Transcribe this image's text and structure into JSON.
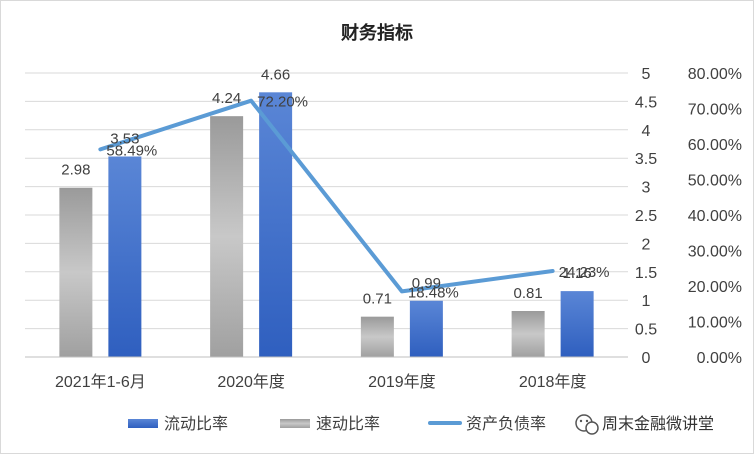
{
  "chart_data": {
    "type": "bar",
    "title": "财务指标",
    "categories": [
      "2021年1-6月",
      "2020年度",
      "2019年度",
      "2018年度"
    ],
    "series": [
      {
        "name": "速动比率",
        "kind": "bar",
        "axis": "left",
        "values": [
          2.98,
          4.24,
          0.71,
          0.81
        ],
        "labels": [
          "2.98",
          "4.24",
          "0.71",
          "0.81"
        ],
        "color": "#a6a6a6"
      },
      {
        "name": "流动比率",
        "kind": "bar",
        "axis": "left",
        "values": [
          3.53,
          4.66,
          0.99,
          1.16
        ],
        "labels": [
          "3.53",
          "4.66",
          "0.99",
          "1.16"
        ],
        "color": "#4472c4"
      },
      {
        "name": "资产负债率",
        "kind": "line",
        "axis": "right",
        "values": [
          58.49,
          72.2,
          18.48,
          24.23
        ],
        "labels": [
          "58.49%",
          "72.20%",
          "18.48%",
          "24.23%"
        ],
        "color": "#5b9bd5"
      }
    ],
    "y_left": {
      "min": 0,
      "max": 5,
      "ticks": [
        "0",
        "0.5",
        "1",
        "1.5",
        "2",
        "2.5",
        "3",
        "3.5",
        "4",
        "4.5",
        "5"
      ]
    },
    "y_right": {
      "min": 0,
      "max": 80,
      "ticks": [
        "0.00%",
        "10.00%",
        "20.00%",
        "30.00%",
        "40.00%",
        "50.00%",
        "60.00%",
        "70.00%",
        "80.00%"
      ]
    },
    "grid": true,
    "legend": {
      "position": "bottom",
      "order": [
        "流动比率",
        "速动比率",
        "资产负债率"
      ]
    }
  },
  "watermark": {
    "text": "周末金融微讲堂",
    "icon": "wechat-icon"
  }
}
